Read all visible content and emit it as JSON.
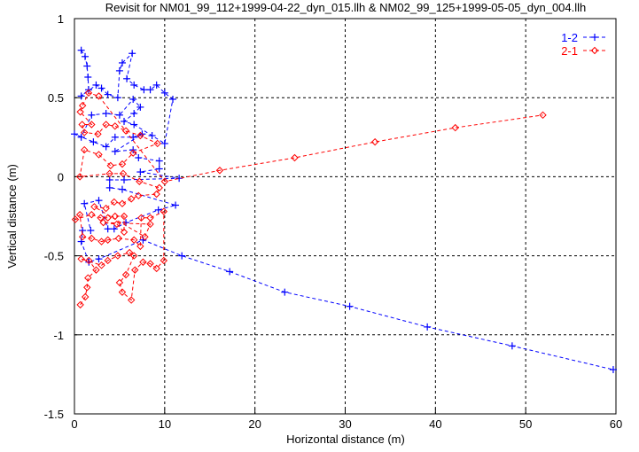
{
  "chart_data": {
    "type": "line",
    "title": "Revisit for NM01_99_112+1999-04-22_dyn_015.llh & NM02_99_125+1999-05-05_dyn_004.llh",
    "xlabel": "Horizontal distance (m)",
    "ylabel": "Vertical distance (m)",
    "xlim": [
      0,
      60
    ],
    "ylim": [
      -1.5,
      1
    ],
    "xticks": [
      "0",
      "10",
      "20",
      "30",
      "40",
      "50",
      "60"
    ],
    "yticks": [
      "1",
      "0.5",
      "0",
      "-0.5",
      "-1",
      "-1.5"
    ],
    "grid": true,
    "legend_position": "top-right",
    "series": [
      {
        "name": "1-2",
        "color": "#0000ff",
        "marker": "plus",
        "points": [
          [
            0.75,
            0.8
          ],
          [
            1.18,
            0.76
          ],
          [
            1.4,
            0.7
          ],
          [
            1.5,
            0.63
          ],
          [
            1.57,
            0.55
          ],
          [
            0.75,
            0.51
          ],
          [
            2.4,
            0.58
          ],
          [
            3.0,
            0.56
          ],
          [
            3.7,
            0.52
          ],
          [
            4.8,
            0.5
          ],
          [
            5.0,
            0.67
          ],
          [
            5.3,
            0.72
          ],
          [
            6.4,
            0.78
          ],
          [
            5.8,
            0.62
          ],
          [
            6.6,
            0.58
          ],
          [
            7.7,
            0.55
          ],
          [
            8.4,
            0.55
          ],
          [
            9.1,
            0.58
          ],
          [
            10.0,
            0.53
          ],
          [
            10.9,
            0.49
          ],
          [
            10.0,
            0.21
          ],
          [
            8.6,
            0.26
          ],
          [
            6.6,
            0.33
          ],
          [
            5.5,
            0.35
          ],
          [
            6.6,
            0.4
          ],
          [
            7.3,
            0.44
          ],
          [
            6.5,
            0.49
          ],
          [
            5.0,
            0.39
          ],
          [
            3.5,
            0.4
          ],
          [
            1.9,
            0.39
          ],
          [
            0.75,
            0.25
          ],
          [
            0,
            0.27
          ],
          [
            2.1,
            0.22
          ],
          [
            3.5,
            0.19
          ],
          [
            4.5,
            0.25
          ],
          [
            6.5,
            0.25
          ],
          [
            7.5,
            0.27
          ],
          [
            4.5,
            0.16
          ],
          [
            6.5,
            0.17
          ],
          [
            7.1,
            0.12
          ],
          [
            9.4,
            0.1
          ],
          [
            9.4,
            0.05
          ],
          [
            7.3,
            0.03
          ],
          [
            11.6,
            -0.01
          ],
          [
            5.5,
            -0.02
          ],
          [
            3.9,
            -0.02
          ],
          [
            3.9,
            -0.07
          ],
          [
            5.3,
            -0.08
          ],
          [
            11.2,
            -0.18
          ],
          [
            9.3,
            -0.21
          ],
          [
            5.7,
            -0.29
          ],
          [
            4.4,
            -0.33
          ],
          [
            3.7,
            -0.33
          ],
          [
            2.7,
            -0.15
          ],
          [
            1.1,
            -0.17
          ],
          [
            1.8,
            -0.34
          ],
          [
            0.9,
            -0.34
          ],
          [
            0.75,
            -0.41
          ],
          [
            1.6,
            -0.54
          ],
          [
            2.7,
            -0.52
          ],
          [
            7.6,
            -0.4
          ],
          [
            11.9,
            -0.5
          ],
          [
            17.2,
            -0.6
          ],
          [
            23.3,
            -0.73
          ],
          [
            30.5,
            -0.82
          ],
          [
            39.1,
            -0.95
          ],
          [
            48.5,
            -1.07
          ],
          [
            59.7,
            -1.22
          ]
        ]
      },
      {
        "name": "2-1",
        "color": "#ff0000",
        "marker": "diamond",
        "points": [
          [
            0.65,
            -0.81
          ],
          [
            1.2,
            -0.76
          ],
          [
            1.4,
            -0.7
          ],
          [
            1.5,
            -0.64
          ],
          [
            2.4,
            -0.59
          ],
          [
            1.6,
            -0.53
          ],
          [
            0.75,
            -0.52
          ],
          [
            3.0,
            -0.56
          ],
          [
            3.7,
            -0.53
          ],
          [
            4.8,
            -0.5
          ],
          [
            6.1,
            -0.48
          ],
          [
            6.6,
            -0.5
          ],
          [
            5.7,
            -0.62
          ],
          [
            5.0,
            -0.67
          ],
          [
            5.3,
            -0.73
          ],
          [
            6.3,
            -0.78
          ],
          [
            6.7,
            -0.59
          ],
          [
            7.6,
            -0.54
          ],
          [
            8.4,
            -0.55
          ],
          [
            9.1,
            -0.58
          ],
          [
            9.9,
            -0.53
          ],
          [
            9.9,
            -0.22
          ],
          [
            8.4,
            -0.26
          ],
          [
            7.4,
            -0.26
          ],
          [
            7.3,
            -0.44
          ],
          [
            6.6,
            -0.4
          ],
          [
            4.9,
            -0.39
          ],
          [
            3.7,
            -0.4
          ],
          [
            3.0,
            -0.41
          ],
          [
            1.9,
            -0.39
          ],
          [
            0.9,
            -0.38
          ],
          [
            0.6,
            -0.24
          ],
          [
            0.1,
            -0.27
          ],
          [
            1.9,
            -0.24
          ],
          [
            2.9,
            -0.26
          ],
          [
            3.7,
            -0.26
          ],
          [
            4.5,
            -0.25
          ],
          [
            5.5,
            -0.25
          ],
          [
            5.5,
            -0.35
          ],
          [
            4.7,
            -0.3
          ],
          [
            3.2,
            -0.29
          ],
          [
            8.4,
            -0.3
          ],
          [
            7.8,
            -0.38
          ],
          [
            2.2,
            -0.19
          ],
          [
            3.5,
            -0.2
          ],
          [
            4.4,
            -0.16
          ],
          [
            5.3,
            -0.17
          ],
          [
            6.3,
            -0.14
          ],
          [
            7.1,
            -0.12
          ],
          [
            9.1,
            -0.11
          ],
          [
            9.4,
            -0.07
          ],
          [
            7.2,
            -0.03
          ],
          [
            5.4,
            0.02
          ],
          [
            3.9,
            0.02
          ],
          [
            0.6,
            0.0
          ],
          [
            1.1,
            0.17
          ],
          [
            2.7,
            0.14
          ],
          [
            4.0,
            0.07
          ],
          [
            5.3,
            0.08
          ],
          [
            6.5,
            0.15
          ],
          [
            9.2,
            0.21
          ],
          [
            7.3,
            0.26
          ],
          [
            5.7,
            0.29
          ],
          [
            4.5,
            0.32
          ],
          [
            3.5,
            0.33
          ],
          [
            2.6,
            0.27
          ],
          [
            1.1,
            0.28
          ],
          [
            0.85,
            0.33
          ],
          [
            1.9,
            0.33
          ],
          [
            0.65,
            0.41
          ],
          [
            0.9,
            0.45
          ],
          [
            1.57,
            0.53
          ],
          [
            2.7,
            0.51
          ],
          [
            10.0,
            -0.03
          ],
          [
            16.1,
            0.04
          ],
          [
            24.4,
            0.12
          ],
          [
            33.3,
            0.22
          ],
          [
            42.2,
            0.31
          ],
          [
            51.9,
            0.39
          ]
        ]
      }
    ]
  }
}
